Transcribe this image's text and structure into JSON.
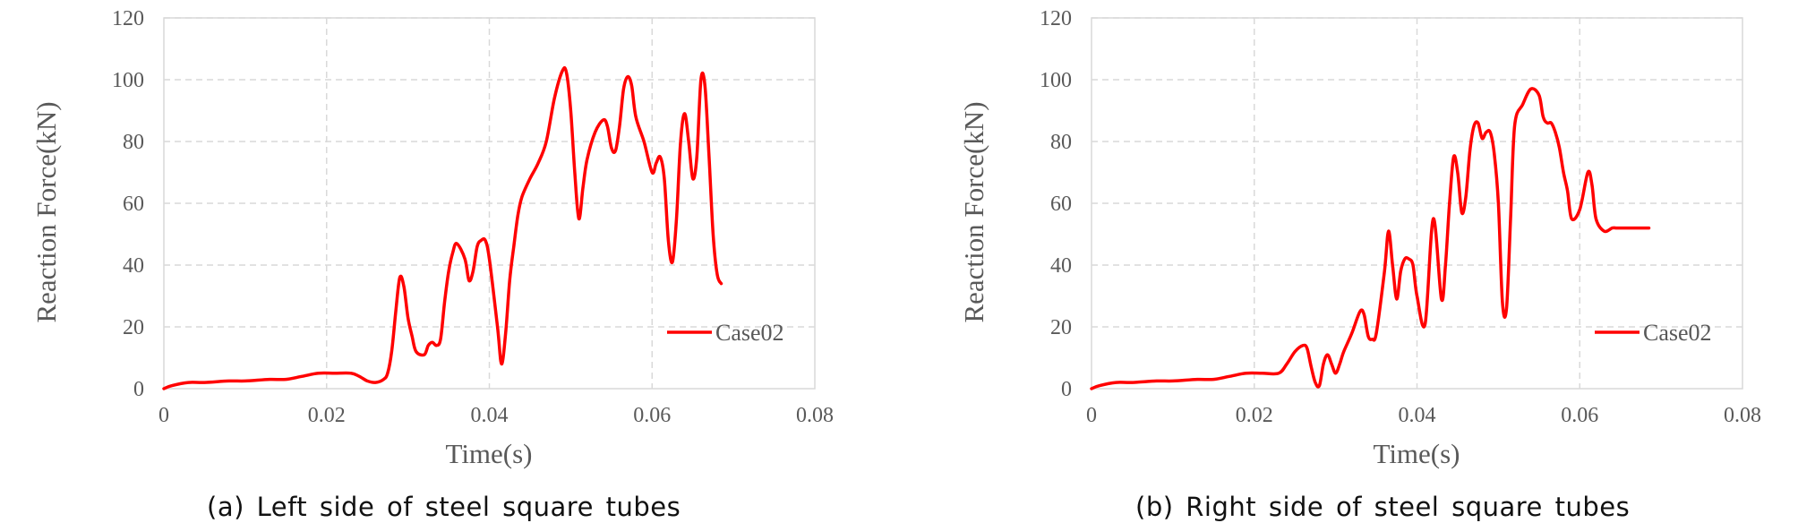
{
  "chart_data": [
    {
      "type": "line",
      "xlabel": "Time(s)",
      "ylabel": "Reaction Force(kN)",
      "xlim": [
        0,
        0.08
      ],
      "ylim": [
        0,
        120
      ],
      "xticks": [
        "0",
        "0.02",
        "0.04",
        "0.06",
        "0.08"
      ],
      "yticks": [
        "0",
        "20",
        "40",
        "60",
        "80",
        "100",
        "120"
      ],
      "grid": true,
      "legend": "right",
      "series": [
        {
          "name": "Case02",
          "color": "#ff0000",
          "x": [
            0,
            0.001,
            0.003,
            0.005,
            0.008,
            0.01,
            0.013,
            0.015,
            0.017,
            0.019,
            0.021,
            0.023,
            0.024,
            0.025,
            0.026,
            0.027,
            0.0275,
            0.028,
            0.0285,
            0.029,
            0.0295,
            0.03,
            0.0305,
            0.031,
            0.032,
            0.0325,
            0.033,
            0.0335,
            0.034,
            0.0345,
            0.035,
            0.0355,
            0.036,
            0.037,
            0.0375,
            0.038,
            0.0385,
            0.039,
            0.0395,
            0.04,
            0.041,
            0.0415,
            0.042,
            0.0425,
            0.043,
            0.0435,
            0.044,
            0.045,
            0.046,
            0.047,
            0.048,
            0.049,
            0.0495,
            0.05,
            0.0505,
            0.051,
            0.0515,
            0.052,
            0.053,
            0.054,
            0.0545,
            0.055,
            0.0555,
            0.056,
            0.0565,
            0.057,
            0.0575,
            0.058,
            0.059,
            0.06,
            0.0605,
            0.061,
            0.0615,
            0.062,
            0.0625,
            0.063,
            0.0635,
            0.064,
            0.0645,
            0.065,
            0.0655,
            0.066,
            0.0665,
            0.067,
            0.0675,
            0.068,
            0.0685
          ],
          "y": [
            0,
            1,
            2,
            2,
            2.5,
            2.5,
            3,
            3,
            4,
            5,
            5,
            5,
            4,
            2.5,
            2,
            3,
            5,
            12,
            25,
            36,
            33,
            23,
            17,
            12,
            11,
            14,
            15,
            14,
            16,
            28,
            38,
            44,
            47,
            42,
            35,
            38,
            46,
            48,
            48,
            42,
            20,
            8,
            18,
            35,
            46,
            56,
            62,
            68,
            73,
            80,
            94,
            103,
            102,
            90,
            70,
            55,
            65,
            74,
            83,
            87,
            85,
            78,
            77,
            85,
            97,
            101,
            98,
            88,
            80,
            70,
            73,
            75,
            68,
            48,
            41,
            55,
            80,
            89,
            80,
            68,
            75,
            100,
            98,
            75,
            50,
            37,
            34
          ],
          "x_plot_note": "",
          "y_note": ""
        }
      ]
    },
    {
      "type": "line",
      "xlabel": "Time(s)",
      "ylabel": "Reaction Force(kN)",
      "xlim": [
        0,
        0.08
      ],
      "ylim": [
        0,
        120
      ],
      "xticks": [
        "0",
        "0.02",
        "0.04",
        "0.06",
        "0.08"
      ],
      "yticks": [
        "0",
        "20",
        "40",
        "60",
        "80",
        "100",
        "120"
      ],
      "grid": true,
      "legend": "right",
      "series": [
        {
          "name": "Case02",
          "color": "#ff0000",
          "x": [
            0,
            0.001,
            0.003,
            0.005,
            0.008,
            0.01,
            0.013,
            0.015,
            0.017,
            0.019,
            0.021,
            0.023,
            0.024,
            0.025,
            0.026,
            0.0265,
            0.027,
            0.0275,
            0.028,
            0.0285,
            0.029,
            0.0295,
            0.03,
            0.0305,
            0.031,
            0.032,
            0.033,
            0.0335,
            0.034,
            0.0345,
            0.035,
            0.036,
            0.0365,
            0.037,
            0.0375,
            0.038,
            0.0385,
            0.039,
            0.0395,
            0.04,
            0.041,
            0.042,
            0.043,
            0.0435,
            0.044,
            0.0445,
            0.045,
            0.0455,
            0.046,
            0.0465,
            0.047,
            0.0475,
            0.048,
            0.0485,
            0.049,
            0.0495,
            0.05,
            0.0505,
            0.051,
            0.0515,
            0.052,
            0.053,
            0.054,
            0.055,
            0.0555,
            0.056,
            0.0565,
            0.057,
            0.0575,
            0.058,
            0.0585,
            0.059,
            0.06,
            0.061,
            0.0615,
            0.062,
            0.063,
            0.064,
            0.0645,
            0.065,
            0.0655,
            0.066,
            0.0665,
            0.067,
            0.0675,
            0.068,
            0.0685
          ],
          "y": [
            0,
            1,
            2,
            2,
            2.5,
            2.5,
            3,
            3,
            4,
            5,
            5,
            5,
            8,
            12,
            14,
            13,
            7,
            2,
            1,
            8,
            11,
            8,
            5,
            8,
            12,
            18,
            25,
            24,
            17,
            16,
            18,
            38,
            51,
            40,
            29,
            38,
            42,
            42,
            40,
            30,
            21,
            55,
            29,
            40,
            60,
            75,
            70,
            57,
            62,
            77,
            85,
            86,
            81,
            83,
            83,
            76,
            60,
            28,
            26,
            55,
            85,
            92,
            97,
            95,
            88,
            86,
            86,
            83,
            78,
            70,
            64,
            55,
            58,
            70,
            66,
            55,
            51,
            52,
            52,
            52,
            52,
            52,
            52,
            52,
            52,
            52,
            52
          ],
          "x_plot_note": "",
          "y_note": ""
        }
      ]
    }
  ],
  "captions": [
    "(a) Left side of steel square tubes",
    "(b) Right side of steel square tubes"
  ]
}
